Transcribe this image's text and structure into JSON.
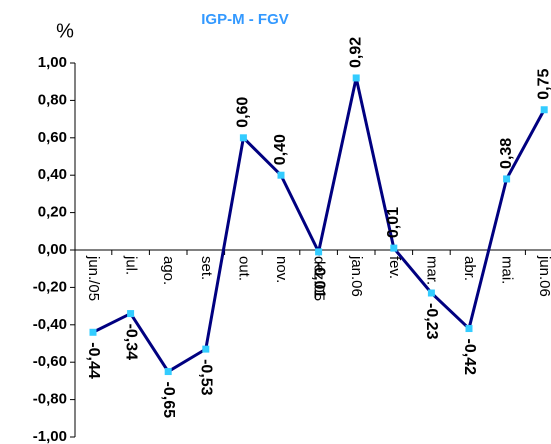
{
  "chart_data": {
    "type": "line",
    "title": "IGP-M - FGV",
    "y_label": "%",
    "categories": [
      "jun./05",
      "jul.",
      "ago.",
      "set.",
      "out.",
      "nov.",
      "dez.05",
      "jan.06",
      "fev.",
      "mar.",
      "abr.",
      "mai.",
      "jun.06"
    ],
    "series": [
      {
        "name": "IGP-M - FGV",
        "color": "#000080",
        "marker_color": "#33ccff",
        "values": [
          -0.44,
          -0.34,
          -0.65,
          -0.53,
          0.6,
          0.4,
          -0.01,
          0.92,
          0.01,
          -0.23,
          -0.42,
          0.38,
          0.75
        ],
        "value_labels": [
          "-0,44",
          "-0,34",
          "-0,65",
          "-0,53",
          "0,60",
          "0,40",
          "-0,01",
          "0,92",
          "0,01",
          "-0,23",
          "-0,42",
          "0,38",
          "0,75"
        ]
      }
    ],
    "ylim": [
      -1,
      1
    ],
    "yticks": [
      {
        "value": -1,
        "label": "-1,00"
      },
      {
        "value": -0.8,
        "label": "-0,80"
      },
      {
        "value": -0.6,
        "label": "-0,60"
      },
      {
        "value": -0.4,
        "label": "-0,40"
      },
      {
        "value": -0.2,
        "label": "-0,20"
      },
      {
        "value": 0,
        "label": "0,00"
      },
      {
        "value": 0.2,
        "label": "0,20"
      },
      {
        "value": 0.4,
        "label": "0,40"
      },
      {
        "value": 0.6,
        "label": "0,60"
      },
      {
        "value": 0.8,
        "label": "0,80"
      },
      {
        "value": 1,
        "label": "1,00"
      }
    ],
    "grid": false
  }
}
